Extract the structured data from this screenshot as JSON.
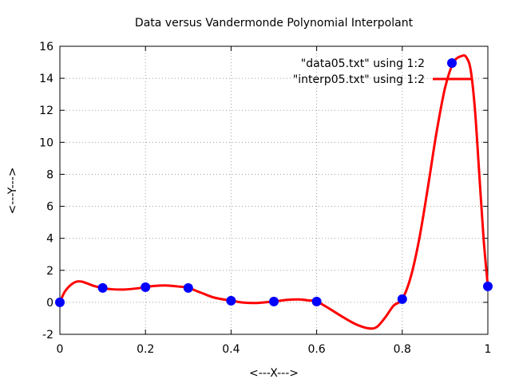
{
  "chart_data": {
    "type": "line",
    "title": "Data versus Vandermonde Polynomial Interpolant",
    "xlabel": "<---X--->",
    "ylabel": "<---Y--->",
    "xlim": [
      0,
      1
    ],
    "ylim": [
      -2,
      16
    ],
    "xticks": [
      0,
      0.2,
      0.4,
      0.6,
      0.8,
      1
    ],
    "xtick_labels": [
      "0",
      "0.2",
      "0.4",
      "0.6",
      "0.8",
      "1"
    ],
    "yticks": [
      -2,
      0,
      2,
      4,
      6,
      8,
      10,
      12,
      14,
      16
    ],
    "ytick_labels": [
      "-2",
      "0",
      "2",
      "4",
      "6",
      "8",
      "10",
      "12",
      "14",
      "16"
    ],
    "grid": true,
    "legend_position": "top-right",
    "series": [
      {
        "name": "\"data05.txt\" using 1:2",
        "kind": "scatter",
        "color": "#0000ff",
        "x": [
          0,
          0.1,
          0.2,
          0.3,
          0.4,
          0.5,
          0.6,
          0.8,
          1.0
        ],
        "y": [
          0.0,
          0.9,
          0.95,
          0.9,
          0.1,
          0.05,
          0.05,
          0.2,
          1.0
        ]
      },
      {
        "name": "\"interp05.txt\" using 1:2",
        "kind": "line",
        "color": "#ff0000",
        "x": [
          0,
          0.01,
          0.02,
          0.03,
          0.04,
          0.05,
          0.06,
          0.08,
          0.1,
          0.12,
          0.15,
          0.18,
          0.2,
          0.22,
          0.25,
          0.28,
          0.3,
          0.33,
          0.36,
          0.4,
          0.43,
          0.46,
          0.5,
          0.53,
          0.56,
          0.58,
          0.6,
          0.63,
          0.66,
          0.69,
          0.72,
          0.74,
          0.76,
          0.78,
          0.8,
          0.82,
          0.84,
          0.86,
          0.88,
          0.9,
          0.92,
          0.94,
          0.95,
          0.96,
          0.97,
          0.98,
          0.99,
          1.0
        ],
        "y": [
          0.0,
          0.6,
          0.95,
          1.18,
          1.3,
          1.3,
          1.22,
          1.02,
          0.9,
          0.82,
          0.8,
          0.87,
          0.95,
          1.02,
          1.05,
          0.98,
          0.9,
          0.6,
          0.3,
          0.1,
          -0.02,
          -0.04,
          0.05,
          0.15,
          0.18,
          0.12,
          0.05,
          -0.4,
          -0.9,
          -1.35,
          -1.62,
          -1.55,
          -0.95,
          -0.2,
          0.2,
          1.6,
          4.0,
          7.2,
          10.6,
          13.4,
          15.0,
          15.4,
          15.3,
          14.5,
          12.0,
          8.0,
          4.0,
          1.0
        ]
      }
    ]
  }
}
